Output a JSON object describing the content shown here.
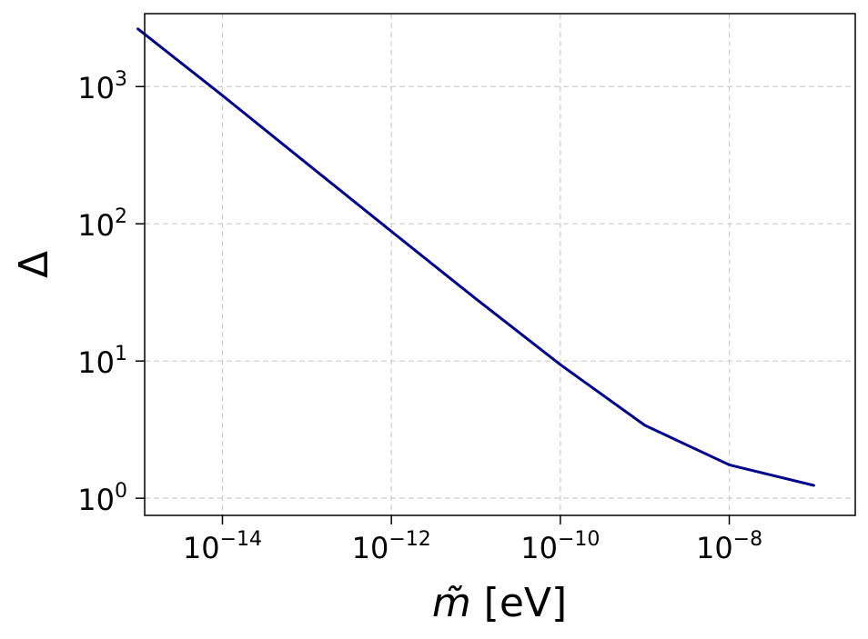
{
  "chart_data": {
    "type": "line",
    "xlabel_symbol": "m̃",
    "xlabel_unit": " [eV]",
    "ylabel": "Δ",
    "xscale": "log",
    "yscale": "log",
    "xlim": [
      1.2e-15,
      3.1e-07
    ],
    "ylim": [
      0.75,
      3400
    ],
    "grid": true,
    "x_ticks": [
      {
        "value": 1e-14,
        "base": "10",
        "exp": "−14"
      },
      {
        "value": 1e-12,
        "base": "10",
        "exp": "−12"
      },
      {
        "value": 1e-10,
        "base": "10",
        "exp": "−10"
      },
      {
        "value": 1e-08,
        "base": "10",
        "exp": "−8"
      }
    ],
    "y_ticks": [
      {
        "value": 1,
        "base": "10",
        "exp": "0"
      },
      {
        "value": 10,
        "base": "10",
        "exp": "1"
      },
      {
        "value": 100,
        "base": "10",
        "exp": "2"
      },
      {
        "value": 1000,
        "base": "10",
        "exp": "3"
      }
    ],
    "series": [
      {
        "color": "#00008b",
        "x": [
          1e-15,
          1e-14,
          1e-13,
          1e-12,
          1e-11,
          1e-10,
          1e-09,
          1e-08,
          1e-07
        ],
        "y": [
          2630,
          860,
          275,
          88,
          28.4,
          9.4,
          3.4,
          1.75,
          1.24
        ]
      }
    ]
  }
}
